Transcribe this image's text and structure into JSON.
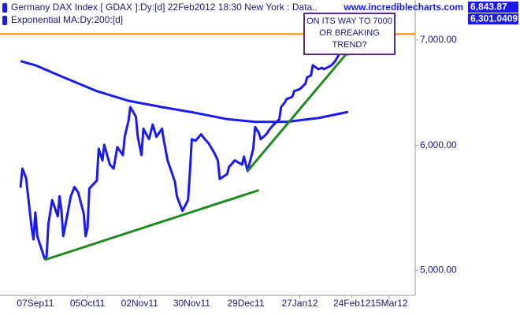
{
  "chart_data": {
    "type": "line",
    "log_y": true,
    "grid": false,
    "watermark": "www.incrediblecharts.com",
    "annotation": "ON ITS WAY TO 7000 OR BREAKING TREND?",
    "ylim": [
      4820,
      7420
    ],
    "yticks": [
      {
        "value": 5000,
        "label": "5,000.00"
      },
      {
        "value": 6000,
        "label": "6,000.00"
      },
      {
        "value": 7000,
        "label": "7,000.00"
      }
    ],
    "xlim": [
      "2011-08-19",
      "2012-03-29"
    ],
    "xticks": [
      {
        "value": "2011-09-07",
        "label": "07Sep11"
      },
      {
        "value": "2011-10-05",
        "label": "05Oct11"
      },
      {
        "value": "2011-11-02",
        "label": "02Nov11"
      },
      {
        "value": "2011-11-30",
        "label": "30Nov11"
      },
      {
        "value": "2011-12-29",
        "label": "29Dec11"
      },
      {
        "value": "2012-01-27",
        "label": "27Jan12"
      },
      {
        "value": "2012-02-24",
        "label": "24Feb12"
      },
      {
        "value": "2012-03-15",
        "label": "15Mar12"
      }
    ],
    "hline": {
      "value": 7060,
      "color": "#ff8c00"
    },
    "trendlines": [
      {
        "color": "#1f8a1f",
        "x": [
          "2011-09-12",
          "2012-01-05"
        ],
        "values": [
          5076,
          5620
        ]
      },
      {
        "color": "#1f8a1f",
        "x": [
          "2011-12-30",
          "2012-02-22"
        ],
        "values": [
          5780,
          6880
        ]
      }
    ],
    "series": [
      {
        "name": "Germany DAX Index [ GDAX ]:Dy:[d]   22Feb2012 18:30 New York : Data..",
        "color": "#1a1aee",
        "last_label": "6,843.87",
        "x": [
          "2011-08-30",
          "2011-08-31",
          "2011-09-02",
          "2011-09-05",
          "2011-09-06",
          "2011-09-07",
          "2011-09-08",
          "2011-09-12",
          "2011-09-13",
          "2011-09-14",
          "2011-09-16",
          "2011-09-19",
          "2011-09-20",
          "2011-09-21",
          "2011-09-22",
          "2011-09-23",
          "2011-09-26",
          "2011-09-28",
          "2011-09-30",
          "2011-10-03",
          "2011-10-04",
          "2011-10-05",
          "2011-10-06",
          "2011-10-10",
          "2011-10-11",
          "2011-10-13",
          "2011-10-14",
          "2011-10-17",
          "2011-10-19",
          "2011-10-21",
          "2011-10-24",
          "2011-10-25",
          "2011-10-27",
          "2011-10-28",
          "2011-10-31",
          "2011-11-01",
          "2011-11-03",
          "2011-11-04",
          "2011-11-07",
          "2011-11-09",
          "2011-11-11",
          "2011-11-14",
          "2011-11-15",
          "2011-11-17",
          "2011-11-21",
          "2011-11-22",
          "2011-11-24",
          "2011-11-25",
          "2011-11-28",
          "2011-11-29",
          "2011-11-30",
          "2011-12-02",
          "2011-12-05",
          "2011-12-07",
          "2011-12-09",
          "2011-12-12",
          "2011-12-14",
          "2011-12-15",
          "2011-12-19",
          "2011-12-20",
          "2011-12-22",
          "2011-12-23",
          "2011-12-27",
          "2011-12-28",
          "2011-12-30",
          "2012-01-02",
          "2012-01-03",
          "2012-01-05",
          "2012-01-06",
          "2012-01-09",
          "2012-01-11",
          "2012-01-13",
          "2012-01-16",
          "2012-01-17",
          "2012-01-19",
          "2012-01-20",
          "2012-01-23",
          "2012-01-24",
          "2012-01-27",
          "2012-01-30",
          "2012-01-31",
          "2012-02-02",
          "2012-02-03",
          "2012-02-06",
          "2012-02-08",
          "2012-02-09",
          "2012-02-13",
          "2012-02-15",
          "2012-02-17",
          "2012-02-20",
          "2012-02-21",
          "2012-02-22"
        ],
        "values": [
          5640,
          5800,
          5720,
          5317,
          5230,
          5441,
          5255,
          5085,
          5100,
          5348,
          5540,
          5410,
          5570,
          5453,
          5255,
          5330,
          5570,
          5647,
          5600,
          5430,
          5255,
          5317,
          5634,
          5700,
          5971,
          5870,
          6005,
          5834,
          5800,
          5985,
          5916,
          6076,
          6220,
          6345,
          6257,
          6076,
          5916,
          6148,
          6055,
          6185,
          6076,
          6148,
          6041,
          5870,
          5687,
          5570,
          5492,
          5453,
          5540,
          5767,
          6055,
          6041,
          6098,
          6055,
          6019,
          5937,
          5870,
          5713,
          5754,
          5815,
          5849,
          5870,
          5834,
          5903,
          5780,
          5971,
          6163,
          6112,
          6055,
          6098,
          6148,
          6185,
          6235,
          6345,
          6390,
          6420,
          6442,
          6495,
          6515,
          6565,
          6629,
          6645,
          6745,
          6706,
          6720,
          6706,
          6745,
          6786,
          6850,
          6945,
          6905,
          6843.87
        ]
      },
      {
        "name": "Exponential MA:Dy:200:[d]",
        "color": "#1a1aee",
        "last_label": "6,301.0409",
        "x": [
          "2011-08-30",
          "2011-09-07",
          "2011-09-22",
          "2011-10-10",
          "2011-10-27",
          "2011-11-14",
          "2011-12-01",
          "2011-12-19",
          "2012-01-03",
          "2012-01-20",
          "2012-02-06",
          "2012-02-22"
        ],
        "values": [
          6786,
          6745,
          6629,
          6495,
          6404,
          6345,
          6295,
          6235,
          6210,
          6210,
          6245,
          6301.0409
        ]
      }
    ]
  }
}
